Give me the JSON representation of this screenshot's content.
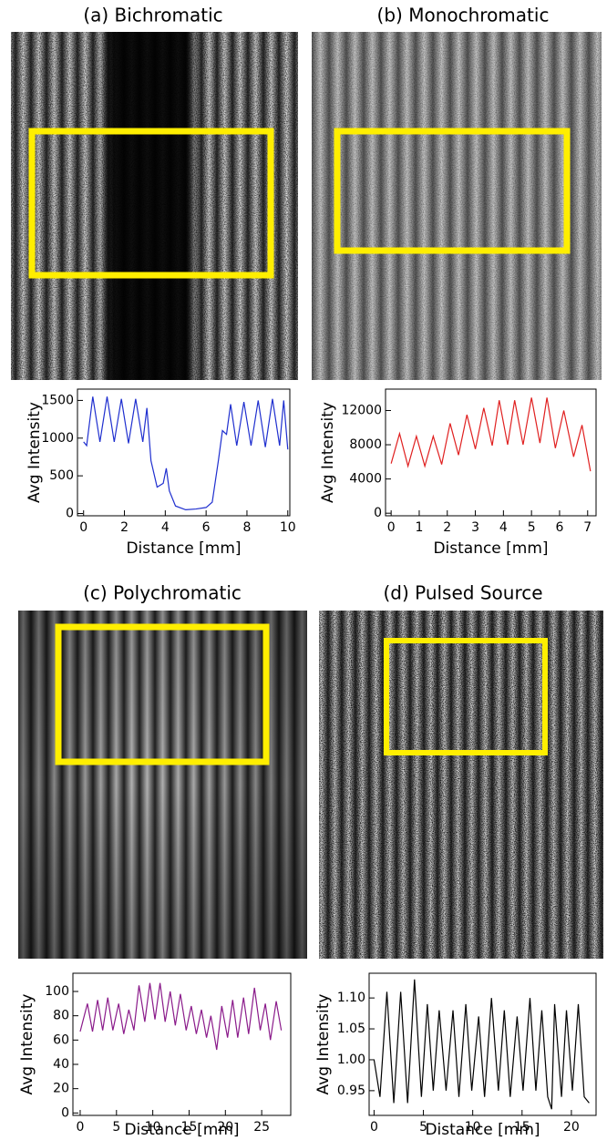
{
  "chart_data": [
    {
      "type": "line",
      "title": "(a) Bichromatic",
      "x_label": "Distance [mm]",
      "y_label": "Avg Intensity",
      "color": "#1f2fcf",
      "x": [
        0,
        0.15,
        0.45,
        0.8,
        1.15,
        1.5,
        1.85,
        2.2,
        2.55,
        2.9,
        3.1,
        3.3,
        3.6,
        3.9,
        4.05,
        4.2,
        4.5,
        5.0,
        5.5,
        6.0,
        6.3,
        6.6,
        6.8,
        7.0,
        7.2,
        7.5,
        7.85,
        8.2,
        8.55,
        8.9,
        9.25,
        9.6,
        9.8,
        10
      ],
      "values": [
        950,
        900,
        1550,
        950,
        1550,
        950,
        1520,
        930,
        1520,
        950,
        1400,
        700,
        350,
        400,
        600,
        300,
        100,
        50,
        60,
        80,
        150,
        700,
        1100,
        1050,
        1450,
        900,
        1480,
        900,
        1500,
        880,
        1520,
        900,
        1500,
        850
      ],
      "xlim": [
        -0.3,
        10.1
      ],
      "ylim": [
        -30,
        1650
      ],
      "xticks": [
        0,
        2,
        4,
        6,
        8,
        10
      ],
      "yticks": [
        0,
        500,
        1000,
        1500
      ]
    },
    {
      "type": "line",
      "title": "(b) Monochromatic",
      "x_label": "Distance [mm]",
      "y_label": "Avg Intensity",
      "color": "#e02020",
      "x": [
        0,
        0.3,
        0.6,
        0.9,
        1.2,
        1.5,
        1.8,
        2.1,
        2.4,
        2.7,
        3.0,
        3.3,
        3.6,
        3.85,
        4.15,
        4.4,
        4.7,
        5.0,
        5.3,
        5.55,
        5.85,
        6.15,
        6.5,
        6.8,
        7.1
      ],
      "values": [
        5800,
        9300,
        5500,
        9000,
        5500,
        9000,
        5700,
        10500,
        6800,
        11500,
        7500,
        12300,
        7900,
        13200,
        8000,
        13200,
        8000,
        13500,
        8200,
        13500,
        7600,
        12000,
        6600,
        10300,
        4900
      ],
      "xlim": [
        -0.2,
        7.3
      ],
      "ylim": [
        -300,
        14500
      ],
      "xticks": [
        0,
        1,
        2,
        3,
        4,
        5,
        6,
        7
      ],
      "yticks": [
        0,
        4000,
        8000,
        12000
      ]
    },
    {
      "type": "line",
      "title": "(c) Polychromatic",
      "x_label": "Distance [mm]",
      "y_label": "Avg Intensity",
      "color": "#8a1a8a",
      "x": [
        0,
        1,
        1.7,
        2.4,
        3.1,
        3.8,
        4.5,
        5.3,
        6,
        6.7,
        7.4,
        8.1,
        8.9,
        9.6,
        10.3,
        11,
        11.7,
        12.4,
        13.1,
        13.8,
        14.6,
        15.3,
        16,
        16.7,
        17.4,
        18,
        18.8,
        19.5,
        20.3,
        21,
        21.7,
        22.5,
        23.2,
        24,
        24.8,
        25.5,
        26.2,
        27,
        27.7
      ],
      "values": [
        67,
        90,
        67,
        93,
        68,
        95,
        68,
        90,
        65,
        85,
        68,
        105,
        75,
        107,
        77,
        107,
        75,
        100,
        72,
        98,
        68,
        88,
        65,
        85,
        62,
        80,
        52,
        88,
        62,
        93,
        62,
        95,
        65,
        103,
        68,
        90,
        60,
        92,
        68
      ],
      "xlim": [
        -1,
        29
      ],
      "ylim": [
        -2,
        115
      ],
      "xticks": [
        0,
        5,
        10,
        15,
        20,
        25
      ],
      "yticks": [
        0,
        20,
        40,
        60,
        80,
        100
      ]
    },
    {
      "type": "line",
      "title": "(d) Pulsed Source",
      "x_label": "Distance [mm]",
      "y_label": "Avg Intensity",
      "color": "#000000",
      "x": [
        0,
        0.6,
        1.3,
        2,
        2.7,
        3.4,
        4.1,
        4.8,
        5.4,
        6,
        6.6,
        7.3,
        8,
        8.6,
        9.3,
        9.9,
        10.6,
        11.2,
        11.9,
        12.6,
        13.2,
        13.8,
        14.5,
        15.1,
        15.8,
        16.4,
        17,
        17.6,
        18,
        18.3,
        19,
        19.5,
        20.1,
        20.7,
        21.3,
        21.8
      ],
      "values": [
        1.0,
        0.94,
        1.11,
        0.93,
        1.11,
        0.93,
        1.13,
        0.94,
        1.09,
        0.95,
        1.08,
        0.95,
        1.08,
        0.94,
        1.09,
        0.95,
        1.07,
        0.94,
        1.1,
        0.95,
        1.08,
        0.94,
        1.07,
        0.95,
        1.1,
        0.95,
        1.08,
        0.94,
        0.92,
        1.09,
        0.94,
        1.08,
        0.95,
        1.09,
        0.94,
        0.93
      ],
      "xlim": [
        -0.5,
        22.5
      ],
      "ylim": [
        0.91,
        1.14
      ],
      "xticks": [
        0,
        5,
        10,
        15,
        20
      ],
      "yticks": [
        {
          "value": 0.95,
          "label": "0.95"
        },
        {
          "value": 1.0,
          "label": "1.00"
        },
        {
          "value": 1.05,
          "label": "1.05"
        },
        {
          "value": 1.1,
          "label": "1.10"
        }
      ]
    }
  ]
}
